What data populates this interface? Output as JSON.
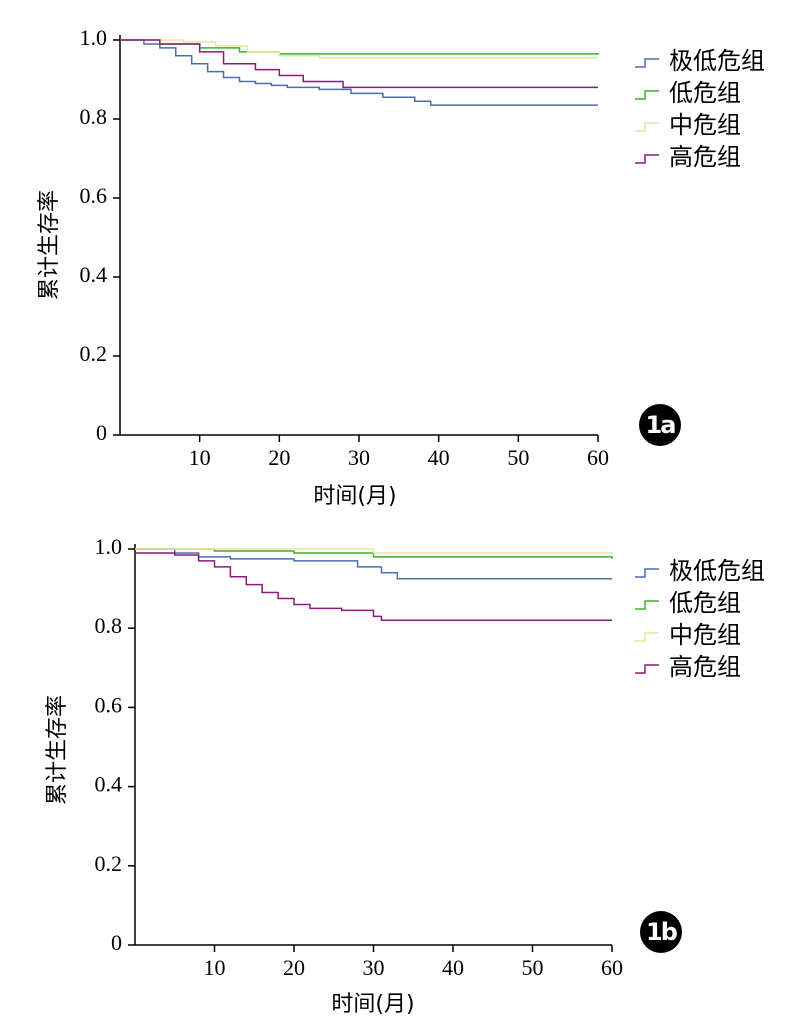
{
  "chart_data": [
    {
      "type": "step",
      "annotation": "1a",
      "x_label": "时间(月)",
      "y_label": "累计生存率",
      "xlim": [
        0,
        60
      ],
      "xticks": [
        10,
        20,
        30,
        40,
        50,
        60
      ],
      "ylim": [
        0,
        1.0
      ],
      "yticks": [
        0,
        0.2,
        0.4,
        0.6,
        0.8,
        {
          "value": 1.0,
          "label": "1.0"
        }
      ],
      "series": [
        {
          "name": "极低危组",
          "color": "#4a6cb3",
          "x": [
            0,
            3,
            5,
            7,
            9,
            11,
            13,
            15,
            17,
            19,
            21,
            25,
            29,
            33,
            37,
            39,
            60
          ],
          "values": [
            1,
            0.99,
            0.98,
            0.96,
            0.94,
            0.92,
            0.905,
            0.895,
            0.89,
            0.885,
            0.88,
            0.875,
            0.865,
            0.855,
            0.845,
            0.835,
            0.835
          ]
        },
        {
          "name": "低危组",
          "color": "#3fae2a",
          "x": [
            0,
            5,
            10,
            15,
            20,
            60
          ],
          "values": [
            1,
            0.99,
            0.98,
            0.97,
            0.965,
            0.962
          ]
        },
        {
          "name": "中危组",
          "color": "#e6e6a0",
          "x": [
            0,
            8,
            12,
            16,
            20,
            25,
            60
          ],
          "values": [
            1,
            0.995,
            0.985,
            0.97,
            0.96,
            0.955,
            0.955
          ]
        },
        {
          "name": "高危组",
          "color": "#8b1a7a",
          "x": [
            0,
            5,
            10,
            13,
            17,
            20,
            23,
            28,
            60
          ],
          "values": [
            1,
            0.99,
            0.97,
            0.94,
            0.925,
            0.91,
            0.895,
            0.88,
            0.88
          ]
        }
      ]
    },
    {
      "type": "step",
      "annotation": "1b",
      "x_label": "时间(月)",
      "y_label": "累计生存率",
      "xlim": [
        0,
        60
      ],
      "xticks": [
        10,
        20,
        30,
        40,
        50,
        60
      ],
      "ylim": [
        0,
        1.0
      ],
      "yticks": [
        0,
        0.2,
        0.4,
        0.6,
        0.8,
        {
          "value": 1.0,
          "label": "1.0"
        }
      ],
      "series": [
        {
          "name": "极低危组",
          "color": "#4a6cb3",
          "x": [
            0,
            5,
            8,
            12,
            20,
            28,
            31,
            33,
            60
          ],
          "values": [
            1,
            0.99,
            0.98,
            0.975,
            0.97,
            0.955,
            0.94,
            0.925,
            0.925
          ]
        },
        {
          "name": "低危组",
          "color": "#3fae2a",
          "x": [
            0,
            10,
            20,
            30,
            60
          ],
          "values": [
            1,
            0.995,
            0.99,
            0.98,
            0.975
          ]
        },
        {
          "name": "中危组",
          "color": "#e6e6a0",
          "x": [
            0,
            30,
            60
          ],
          "values": [
            1,
            0.99,
            0.985
          ]
        },
        {
          "name": "高危组",
          "color": "#8b1a7a",
          "x": [
            0,
            5,
            8,
            10,
            12,
            14,
            16,
            18,
            20,
            22,
            26,
            30,
            31,
            60
          ],
          "values": [
            0.99,
            0.985,
            0.97,
            0.955,
            0.93,
            0.91,
            0.89,
            0.875,
            0.86,
            0.85,
            0.845,
            0.83,
            0.82,
            0.82
          ]
        }
      ]
    }
  ]
}
